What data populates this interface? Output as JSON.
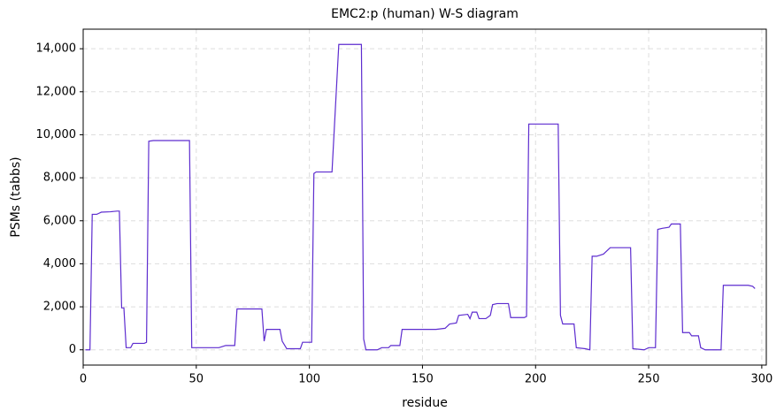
{
  "chart_data": {
    "type": "line",
    "title": "EMC2:p (human) W-S diagram",
    "x_label": "residue",
    "y_label": "PSMs (tabbs)",
    "x": [
      1,
      3,
      4,
      6,
      7,
      8,
      12,
      15,
      16,
      17,
      18,
      19,
      21,
      22,
      27,
      28,
      29,
      31,
      47,
      48,
      60,
      63,
      67,
      68,
      79,
      80,
      81,
      87,
      88,
      90,
      96,
      97,
      101,
      102,
      103,
      110,
      113,
      123,
      124,
      125,
      130,
      132,
      135,
      136,
      140,
      141,
      148,
      156,
      160,
      162,
      165,
      166,
      170,
      171,
      172,
      174,
      175,
      178,
      180,
      181,
      183,
      188,
      189,
      195,
      196,
      197,
      198,
      210,
      211,
      212,
      217,
      218,
      222,
      224,
      225,
      227,
      230,
      233,
      242,
      243,
      248,
      250,
      253,
      254,
      256,
      259,
      260,
      264,
      265,
      268,
      269,
      272,
      273,
      275,
      282,
      283,
      294,
      296,
      297
    ],
    "values": [
      0,
      0,
      6300,
      6300,
      6350,
      6400,
      6420,
      6450,
      6450,
      1950,
      1950,
      100,
      100,
      300,
      300,
      350,
      9700,
      9730,
      9730,
      100,
      100,
      200,
      200,
      1900,
      1900,
      400,
      950,
      950,
      400,
      50,
      50,
      350,
      350,
      8200,
      8270,
      8270,
      14200,
      14200,
      500,
      0,
      0,
      100,
      100,
      200,
      200,
      950,
      950,
      950,
      1000,
      1200,
      1250,
      1600,
      1650,
      1450,
      1750,
      1750,
      1450,
      1450,
      1600,
      2100,
      2150,
      2150,
      1500,
      1500,
      1550,
      10500,
      10500,
      10500,
      1600,
      1200,
      1200,
      100,
      50,
      0,
      4350,
      4350,
      4450,
      4750,
      4750,
      50,
      0,
      100,
      100,
      5600,
      5650,
      5700,
      5850,
      5850,
      800,
      800,
      650,
      650,
      100,
      0,
      0,
      3000,
      3000,
      2950,
      2850
    ],
    "color": "#5d2ccf",
    "xlim": [
      0,
      302
    ],
    "xticks": [
      0,
      50,
      100,
      150,
      200,
      250,
      300
    ],
    "ylim": [
      -710,
      14910
    ],
    "yticks": [
      0,
      {
        "value": 2000,
        "label": "2,000"
      },
      {
        "value": 4000,
        "label": "4,000"
      },
      {
        "value": 6000,
        "label": "6,000"
      },
      {
        "value": 8000,
        "label": "8,000"
      },
      {
        "value": 10000,
        "label": "10,000"
      },
      {
        "value": 12000,
        "label": "12,000"
      },
      {
        "value": 14000,
        "label": "14,000"
      }
    ],
    "grid": true
  }
}
